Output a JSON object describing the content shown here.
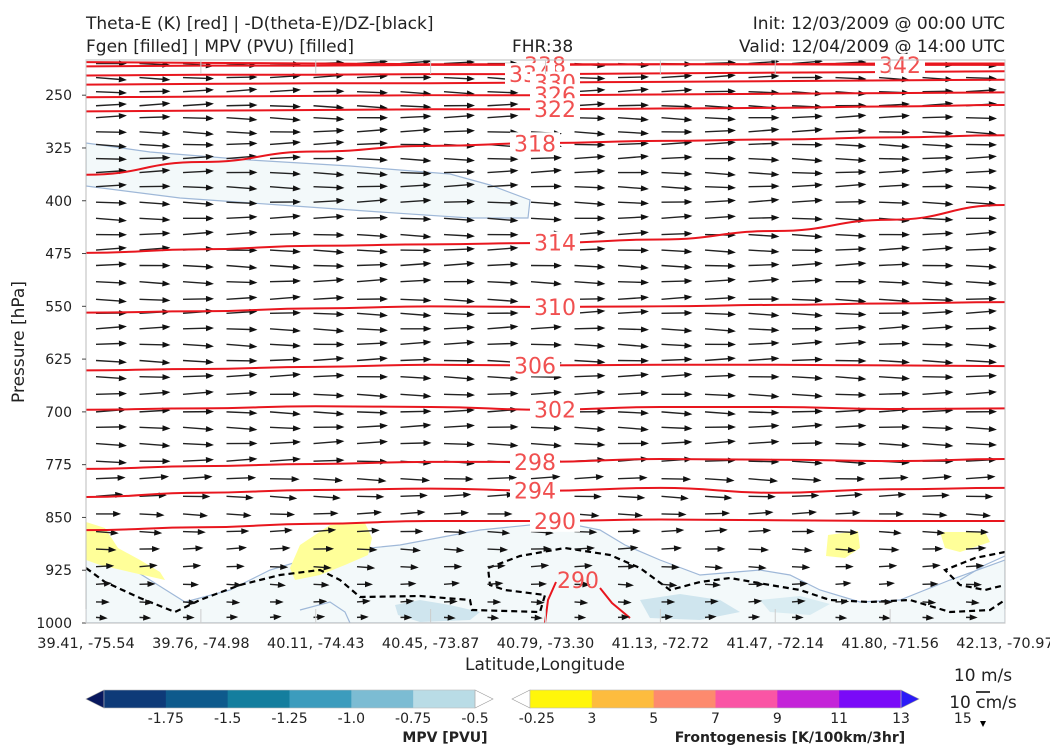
{
  "header": {
    "title_line1": "Theta-E (K) [red] | -D(theta-E)/DZ-[black]",
    "title_line2": "Fgen [filled] | MPV (PVU) [filled]",
    "fhr": "FHR:38",
    "init": "Init: 12/03/2009 @ 00:00 UTC",
    "valid": "Valid: 12/04/2009 @ 14:00 UTC"
  },
  "chart_data": {
    "type": "cross-section",
    "ylabel": "Pressure [hPa]",
    "xlabel": "Latitude,Longitude",
    "ylim": [
      1000,
      200
    ],
    "yticks": [
      250,
      325,
      400,
      475,
      550,
      625,
      700,
      775,
      850,
      925,
      1000
    ],
    "xticks": [
      "39.41, -75.54",
      "39.76, -74.98",
      "40.11, -74.43",
      "40.45, -73.87",
      "40.79, -73.30",
      "41.13, -72.72",
      "41.47, -72.14",
      "41.80, -71.56",
      "42.13, -70.97"
    ],
    "theta_e_contours": [
      {
        "label": "342",
        "p": [
          203,
          204,
          205,
          206,
          206,
          206,
          206,
          207,
          207
        ]
      },
      {
        "label": "338",
        "p": [
          209,
          208,
          208,
          207,
          207,
          206,
          206,
          205,
          205
        ]
      },
      {
        "label": "334",
        "p": [
          222,
          221,
          221,
          220,
          220,
          219,
          218,
          217,
          216
        ]
      },
      {
        "label": "330",
        "p": [
          235,
          234,
          233,
          233,
          232,
          231,
          230,
          229,
          228
        ]
      },
      {
        "label": "326",
        "p": [
          253,
          252,
          251,
          250,
          250,
          249,
          248,
          247,
          246
        ]
      },
      {
        "label": "322",
        "p": [
          273,
          272,
          271,
          270,
          270,
          269,
          268,
          266,
          264
        ]
      },
      {
        "label": "318",
        "p": [
          363,
          345,
          330,
          322,
          318,
          315,
          313,
          310,
          307
        ]
      },
      {
        "label": "314",
        "p": [
          474,
          469,
          464,
          462,
          460,
          455,
          443,
          427,
          406
        ]
      },
      {
        "label": "310",
        "p": [
          559,
          557,
          553,
          550,
          551,
          550,
          548,
          546,
          544
        ]
      },
      {
        "label": "306",
        "p": [
          641,
          639,
          636,
          633,
          634,
          633,
          633,
          634,
          635
        ]
      },
      {
        "label": "302",
        "p": [
          697,
          695,
          692,
          693,
          697,
          693,
          693,
          696,
          695
        ]
      },
      {
        "label": "298",
        "p": [
          781,
          777,
          774,
          771,
          771,
          767,
          768,
          770,
          767
        ]
      },
      {
        "label": "294",
        "p": [
          821,
          815,
          811,
          809,
          812,
          808,
          815,
          810,
          808
        ]
      },
      {
        "label": "290",
        "p": [
          868,
          864,
          859,
          855,
          855,
          853,
          854,
          855,
          855
        ]
      }
    ],
    "theta_e_290_lower_label": "290",
    "wind_vector_rows_hpa": [
      205,
      225,
      245,
      265,
      282,
      302,
      320,
      340,
      360,
      380,
      402,
      425,
      448,
      470,
      492,
      515,
      540,
      560,
      582,
      604,
      627,
      650,
      675,
      700,
      722,
      745,
      770,
      795,
      820,
      845,
      870,
      895,
      920,
      945,
      970,
      992
    ],
    "colorbar_mpv": {
      "title": "MPV [PVU]",
      "ticks": [
        "-1.75",
        "-1.5",
        "-1.25",
        "-1.0",
        "-0.75",
        "-0.5",
        "-0.25"
      ],
      "colors": [
        "#08185e",
        "#0e3a78",
        "#0e5a8c",
        "#147e9e",
        "#3c9cbd",
        "#7cbcd3",
        "#b9dce6",
        "#ffffff"
      ]
    },
    "colorbar_fgen": {
      "title": "Frontogenesis [K/100km/3hr]",
      "ticks": [
        "3",
        "5",
        "7",
        "9",
        "11",
        "13",
        "15"
      ],
      "colors": [
        "#ffffff",
        "#fff60a",
        "#fdbc3e",
        "#fd8a6e",
        "#fa55a5",
        "#c424d8",
        "#7a0af8",
        "#2b1af8"
      ]
    },
    "vector_key": {
      "horizontal": "10 m/s",
      "vertical": "10 cm/s"
    }
  }
}
